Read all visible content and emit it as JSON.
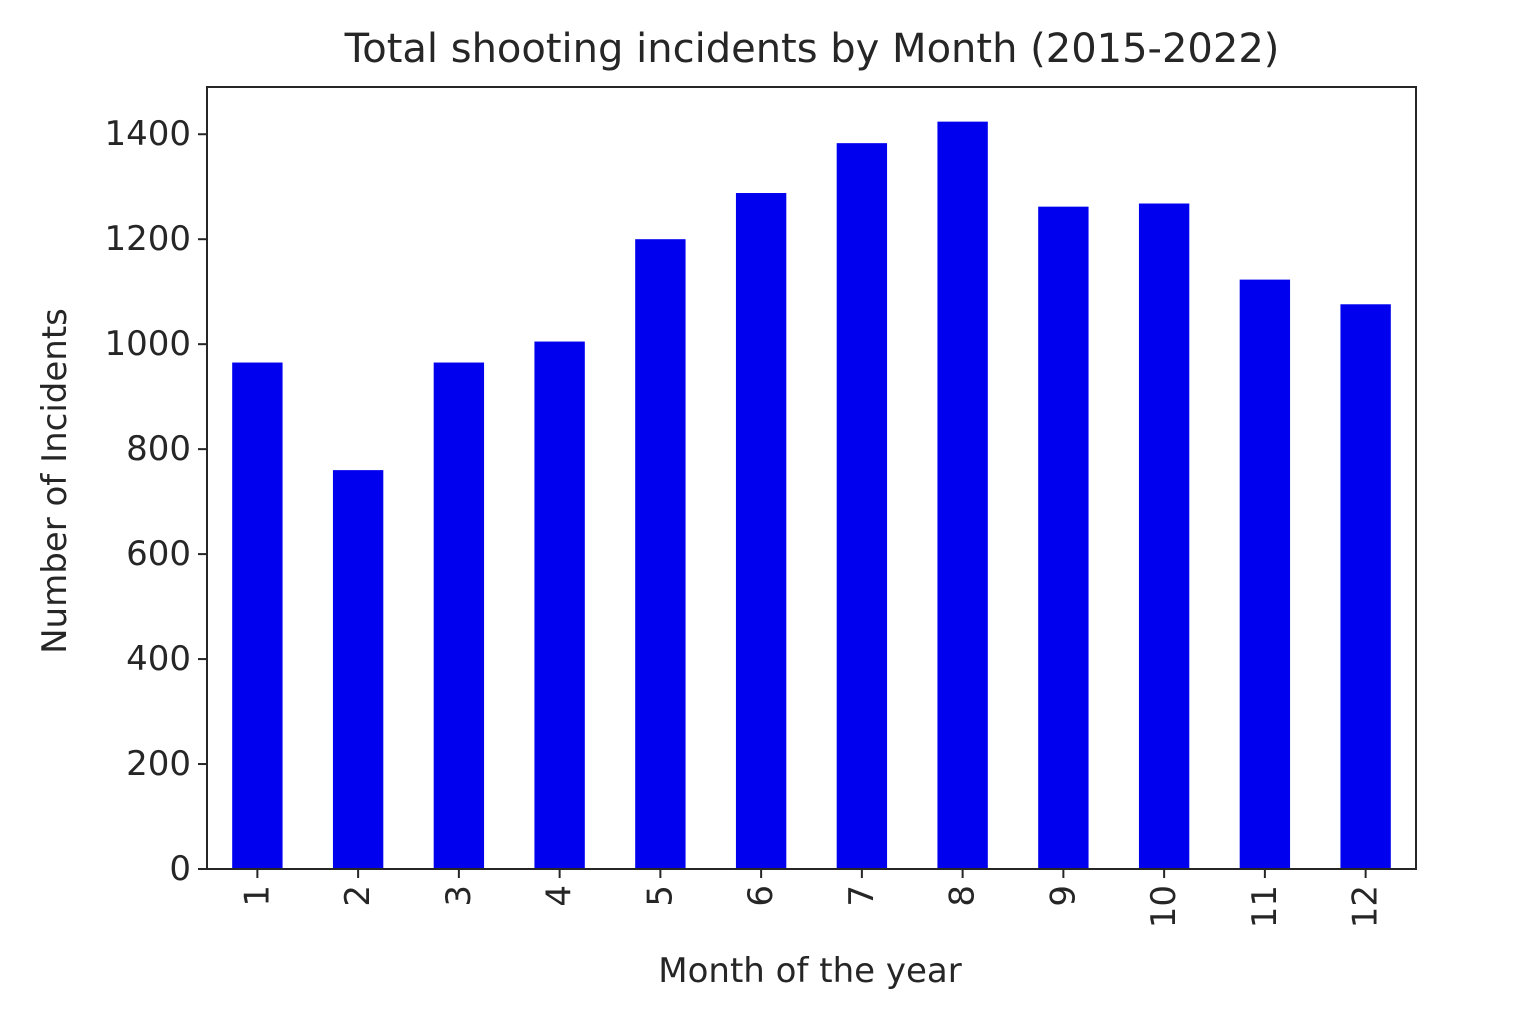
{
  "chart_data": {
    "type": "bar",
    "title": "Total shooting incidents by Month (2015-2022)",
    "xlabel": "Month of the year",
    "ylabel": "Number of Incidents",
    "categories": [
      "1",
      "2",
      "3",
      "4",
      "5",
      "6",
      "7",
      "8",
      "9",
      "10",
      "11",
      "12"
    ],
    "values": [
      965,
      760,
      965,
      1005,
      1200,
      1288,
      1383,
      1424,
      1262,
      1268,
      1123,
      1076
    ],
    "ylim": [
      0,
      1490
    ],
    "yticks": [
      0,
      200,
      400,
      600,
      800,
      1000,
      1200,
      1400
    ],
    "bar_color": "#0000ee",
    "grid": false,
    "legend": "none"
  }
}
